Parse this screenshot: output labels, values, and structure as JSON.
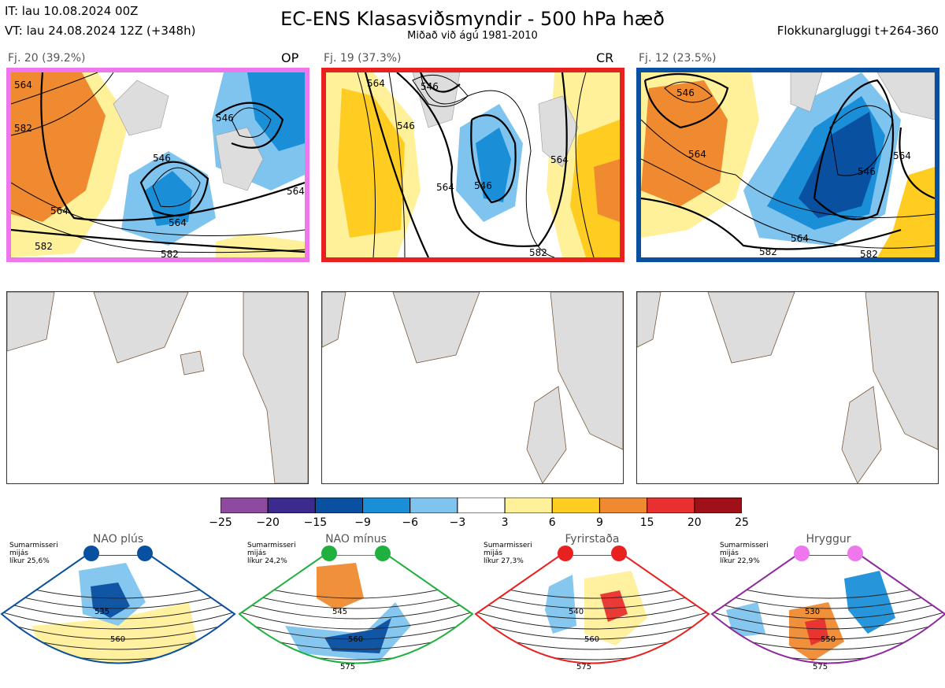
{
  "header": {
    "it": "IT: lau 10.08.2024 00Z",
    "vt": "VT: lau 24.08.2024 12Z  (+348h)",
    "title": "EC-ENS Klasasviðsmyndir - 500 hPa hæð",
    "subtitle": "Miðað við ágú 1981-2010",
    "window": "Flokkunargluggi t+264-360"
  },
  "clusters": [
    {
      "label": "Fj. 20 (39.2%)",
      "tag": "OP",
      "color": "#ee77ee",
      "contours": [
        "564",
        "582",
        "546",
        "546",
        "564",
        "582",
        "582",
        "564",
        "564"
      ]
    },
    {
      "label": "Fj. 19 (37.3%)",
      "tag": "CR",
      "color": "#e82020",
      "contours": [
        "564",
        "546",
        "546",
        "564",
        "564",
        "546",
        "582"
      ]
    },
    {
      "label": "Fj. 12 (23.5%)",
      "tag": "",
      "color": "#0a50a0",
      "contours": [
        "546",
        "564",
        "546",
        "564",
        "564",
        "582",
        "582"
      ]
    }
  ],
  "colorbar": {
    "ticks": [
      "−25",
      "−20",
      "−15",
      "−9",
      "−6",
      "−3",
      "3",
      "6",
      "9",
      "15",
      "20",
      "25"
    ],
    "colors": [
      "#8e4a9e",
      "#3d2a8e",
      "#0a50a0",
      "#1a8fd8",
      "#7fc4ee",
      "#ffffff",
      "#fff09a",
      "#ffcc22",
      "#f08a30",
      "#e83030",
      "#a01018"
    ]
  },
  "regimes": [
    {
      "title": "NAO plús",
      "note": "Sumarmisseri\nmijás\nlíkur 25,6%",
      "dot_color": "#0a50a0",
      "border": "#0a50a0",
      "contours": [
        "535",
        "560"
      ]
    },
    {
      "title": "NAO mínus",
      "note": "Sumarmisseri\nmijás\nlíkur 24,2%",
      "dot_color": "#20b040",
      "border": "#20b040",
      "contours": [
        "545",
        "560",
        "575"
      ]
    },
    {
      "title": "Fyrirstaða",
      "note": "Sumarmisseri\nmijás\nlíkur 27,3%",
      "dot_color": "#e82020",
      "border": "#e82020",
      "contours": [
        "540",
        "560",
        "575"
      ]
    },
    {
      "title": "Hryggur",
      "note": "Sumarmisseri\nmijás\nlíkur 22,9%",
      "dot_color": "#ee77ee",
      "border": "#8e2a9e",
      "contours": [
        "530",
        "550",
        "575"
      ]
    }
  ]
}
